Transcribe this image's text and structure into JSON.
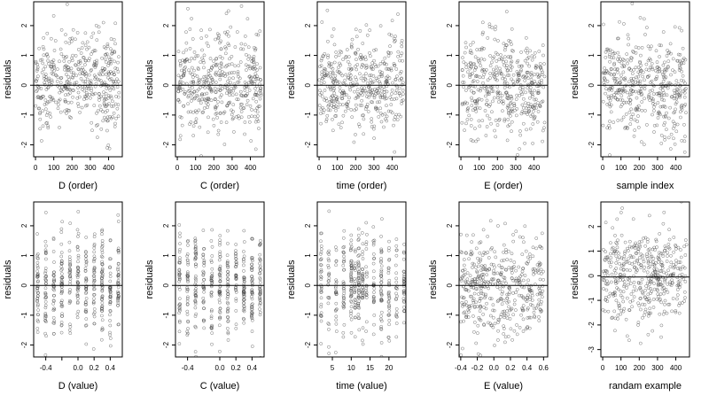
{
  "chart_data": [
    {
      "type": "scatter",
      "xlabel": "D (order)",
      "ylabel": "residuals",
      "xticks": [
        0,
        100,
        200,
        300,
        400
      ],
      "xticklabels": [
        "0",
        "100",
        "200",
        "300",
        "400"
      ],
      "yticks": [
        -2,
        -1,
        0,
        1,
        2
      ],
      "yticklabels": [
        "-2",
        "-1",
        "0",
        "1",
        "2"
      ],
      "xlim": [
        -10,
        475
      ],
      "ylim": [
        -2.4,
        2.8
      ],
      "hline": 0,
      "x_kind": "order",
      "x_range": [
        1,
        460
      ],
      "trend": "d_order",
      "n": 450
    },
    {
      "type": "scatter",
      "xlabel": "C (order)",
      "ylabel": "residuals",
      "xticks": [
        0,
        100,
        200,
        300,
        400
      ],
      "xticklabels": [
        "0",
        "100",
        "200",
        "300",
        "400"
      ],
      "yticks": [
        -2,
        -1,
        0,
        1,
        2
      ],
      "yticklabels": [
        "-2",
        "-1",
        "0",
        "1",
        "2"
      ],
      "xlim": [
        -10,
        475
      ],
      "ylim": [
        -2.4,
        2.8
      ],
      "hline": 0,
      "x_kind": "order",
      "x_range": [
        1,
        460
      ],
      "trend": "c_order",
      "n": 450
    },
    {
      "type": "scatter",
      "xlabel": "time (order)",
      "ylabel": "residuals",
      "xticks": [
        0,
        100,
        200,
        300,
        400
      ],
      "xticklabels": [
        "0",
        "100",
        "200",
        "300",
        "400"
      ],
      "yticks": [
        -2,
        -1,
        0,
        1,
        2
      ],
      "yticklabels": [
        "-2",
        "-1",
        "0",
        "1",
        "2"
      ],
      "xlim": [
        -10,
        475
      ],
      "ylim": [
        -2.4,
        2.8
      ],
      "hline": 0,
      "x_kind": "order",
      "x_range": [
        1,
        460
      ],
      "trend": "time_order",
      "n": 450
    },
    {
      "type": "scatter",
      "xlabel": "E (order)",
      "ylabel": "residuals",
      "xticks": [
        0,
        100,
        200,
        300,
        400
      ],
      "xticklabels": [
        "0",
        "100",
        "200",
        "300",
        "400"
      ],
      "yticks": [
        -2,
        -1,
        0,
        1,
        2
      ],
      "yticklabels": [
        "-2",
        "-1",
        "0",
        "1",
        "2"
      ],
      "xlim": [
        -10,
        475
      ],
      "ylim": [
        -2.4,
        2.8
      ],
      "hline": 0,
      "x_kind": "order",
      "x_range": [
        1,
        460
      ],
      "trend": "e_order",
      "n": 450
    },
    {
      "type": "scatter",
      "xlabel": "sample index",
      "ylabel": "residuals",
      "xticks": [
        0,
        100,
        200,
        300,
        400
      ],
      "xticklabels": [
        "0",
        "100",
        "200",
        "300",
        "400"
      ],
      "yticks": [
        -2,
        -1,
        0,
        1,
        2
      ],
      "yticklabels": [
        "-2",
        "-1",
        "0",
        "1",
        "2"
      ],
      "xlim": [
        -10,
        475
      ],
      "ylim": [
        -2.4,
        2.8
      ],
      "hline": 0,
      "x_kind": "order",
      "x_range": [
        1,
        460
      ],
      "trend": "sample",
      "n": 450
    },
    {
      "type": "scatter",
      "xlabel": "D (value)",
      "ylabel": "residuals",
      "xticks": [
        -0.4,
        -0.2,
        0,
        0.2,
        0.4
      ],
      "xticklabels": [
        "-0.4",
        "",
        "0.0",
        "0.2",
        "0.4"
      ],
      "yticks": [
        -2,
        -1,
        0,
        1,
        2
      ],
      "yticklabels": [
        "-2",
        "-1",
        "0",
        "1",
        "2"
      ],
      "xlim": [
        -0.55,
        0.55
      ],
      "ylim": [
        -2.4,
        2.8
      ],
      "hline": 0,
      "x_kind": "discrete",
      "x_values": [
        -0.5,
        -0.4,
        -0.3,
        -0.2,
        -0.1,
        0,
        0.1,
        0.2,
        0.3,
        0.4,
        0.5
      ],
      "trend": "d_value",
      "n": 450
    },
    {
      "type": "scatter",
      "xlabel": "C (value)",
      "ylabel": "residuals",
      "xticks": [
        -0.4,
        0,
        0.2,
        0.4
      ],
      "xticklabels": [
        "-0.4",
        "0.0",
        "0.2",
        "0.4"
      ],
      "yticks": [
        -2,
        -1,
        0,
        1,
        2
      ],
      "yticklabels": [
        "-2",
        "-1",
        "0",
        "1",
        "2"
      ],
      "xlim": [
        -0.55,
        0.55
      ],
      "ylim": [
        -2.4,
        2.8
      ],
      "hline": 0,
      "x_kind": "discrete",
      "x_values": [
        -0.5,
        -0.4,
        -0.3,
        -0.2,
        -0.1,
        0,
        0.1,
        0.2,
        0.3,
        0.4,
        0.5
      ],
      "trend": "c_value",
      "n": 450
    },
    {
      "type": "scatter",
      "xlabel": "time (value)",
      "ylabel": "residuals",
      "xticks": [
        5,
        10,
        15,
        20
      ],
      "xticklabels": [
        "5",
        "10",
        "15",
        "20"
      ],
      "yticks": [
        -2,
        -1,
        0,
        1,
        2
      ],
      "yticklabels": [
        "-2",
        "-1",
        "0",
        "1",
        "2"
      ],
      "xlim": [
        1,
        24.5
      ],
      "ylim": [
        -2.4,
        2.8
      ],
      "hline": 0,
      "x_kind": "discrete",
      "x_values": [
        2,
        4,
        6,
        8,
        10,
        11,
        12,
        13,
        14,
        16,
        18,
        20,
        22,
        24
      ],
      "trend": "time_value",
      "n": 450
    },
    {
      "type": "scatter",
      "xlabel": "E (value)",
      "ylabel": "residuals",
      "xticks": [
        -0.4,
        -0.2,
        0,
        0.2,
        0.4,
        0.6
      ],
      "xticklabels": [
        "-0.4",
        "-0.2",
        "0.0",
        "0.2",
        "0.4",
        "0.6"
      ],
      "yticks": [
        -2,
        -1,
        0,
        1,
        2
      ],
      "yticklabels": [
        "-2",
        "-1",
        "0",
        "1",
        "2"
      ],
      "xlim": [
        -0.42,
        0.65
      ],
      "ylim": [
        -2.4,
        2.8
      ],
      "hline": 0,
      "x_kind": "continuous",
      "x_range": [
        -0.4,
        0.6
      ],
      "trend": "e_value",
      "n": 450
    },
    {
      "type": "scatter",
      "xlabel": "randam example",
      "ylabel": "residuals",
      "xticks": [
        0,
        100,
        200,
        300,
        400
      ],
      "xticklabels": [
        "0",
        "100",
        "200",
        "300",
        "400"
      ],
      "yticks": [
        -3,
        -2,
        -1,
        0,
        1,
        2
      ],
      "yticklabels": [
        "-3",
        "-2",
        "-1",
        "0",
        "1",
        "2"
      ],
      "xlim": [
        -10,
        475
      ],
      "ylim": [
        -3.3,
        3.0
      ],
      "hline": -0.05,
      "x_kind": "order",
      "x_range": [
        1,
        460
      ],
      "trend": "random",
      "n": 450
    }
  ]
}
